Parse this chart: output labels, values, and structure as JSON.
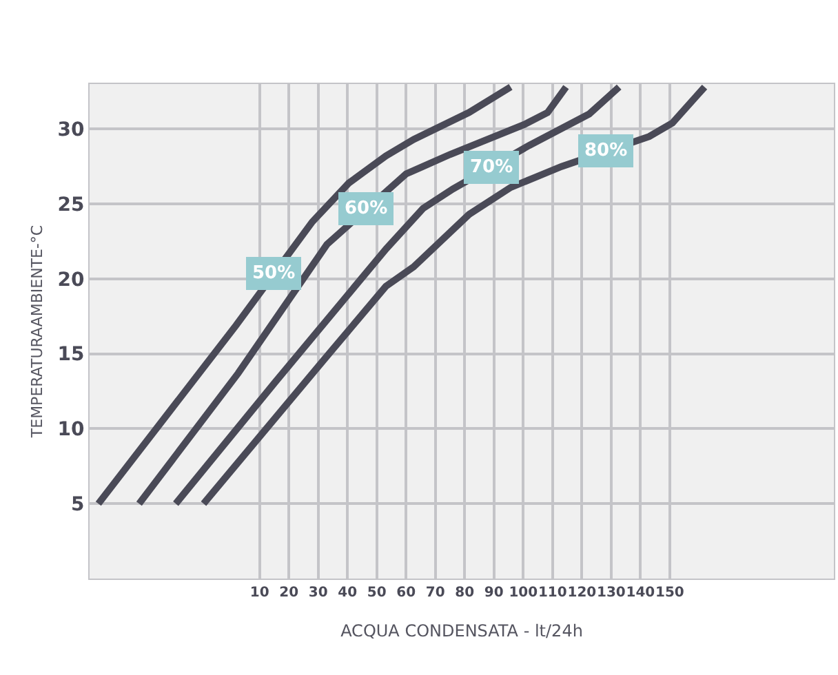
{
  "chart_data": {
    "type": "line",
    "xlabel": "ACQUA CONDENSATA - lt/24h",
    "ylabel": "TEMPERATURAAMBIENTE-°C",
    "xlim": [
      -48,
      206
    ],
    "ylim": [
      0,
      33
    ],
    "xticks": [
      10,
      20,
      30,
      40,
      50,
      60,
      70,
      80,
      90,
      100,
      110,
      120,
      130,
      140,
      150
    ],
    "yticks": [
      5,
      10,
      15,
      20,
      25,
      30
    ],
    "grid": true,
    "legend": false,
    "marker": "none",
    "line_style": "solid",
    "series": [
      {
        "name": "50%",
        "color": "#4a4a57",
        "x": [
          -45.0,
          2.0,
          28.0,
          40.5,
          53.1,
          62.6,
          81.5,
          95.7
        ],
        "values": [
          5,
          16.9,
          23.8,
          26.4,
          28.2,
          29.3,
          31.1,
          32.8
        ]
      },
      {
        "name": "60%",
        "color": "#4a4a57",
        "x": [
          -31.1,
          2.7,
          33.0,
          60.0,
          65.8,
          75.0,
          100.4,
          108.3,
          114.6
        ],
        "values": [
          5,
          13.7,
          22.3,
          27.0,
          27.5,
          28.3,
          30.3,
          31.1,
          32.8
        ]
      },
      {
        "name": "70%",
        "color": "#4a4a57",
        "x": [
          -18.6,
          15.3,
          53.2,
          65.8,
          76.0,
          102.0,
          122.5,
          132.7
        ],
        "values": [
          5,
          13.1,
          22.0,
          24.7,
          26.0,
          28.9,
          31.0,
          32.8
        ]
      },
      {
        "name": "80%",
        "color": "#4a4a57",
        "x": [
          -9.1,
          31.1,
          53.1,
          62.6,
          81.5,
          95.7,
          113.1,
          143.0,
          150.9,
          161.9
        ],
        "values": [
          5,
          14.4,
          19.5,
          20.8,
          24.3,
          26.1,
          27.5,
          29.5,
          30.4,
          32.8
        ]
      }
    ]
  }
}
